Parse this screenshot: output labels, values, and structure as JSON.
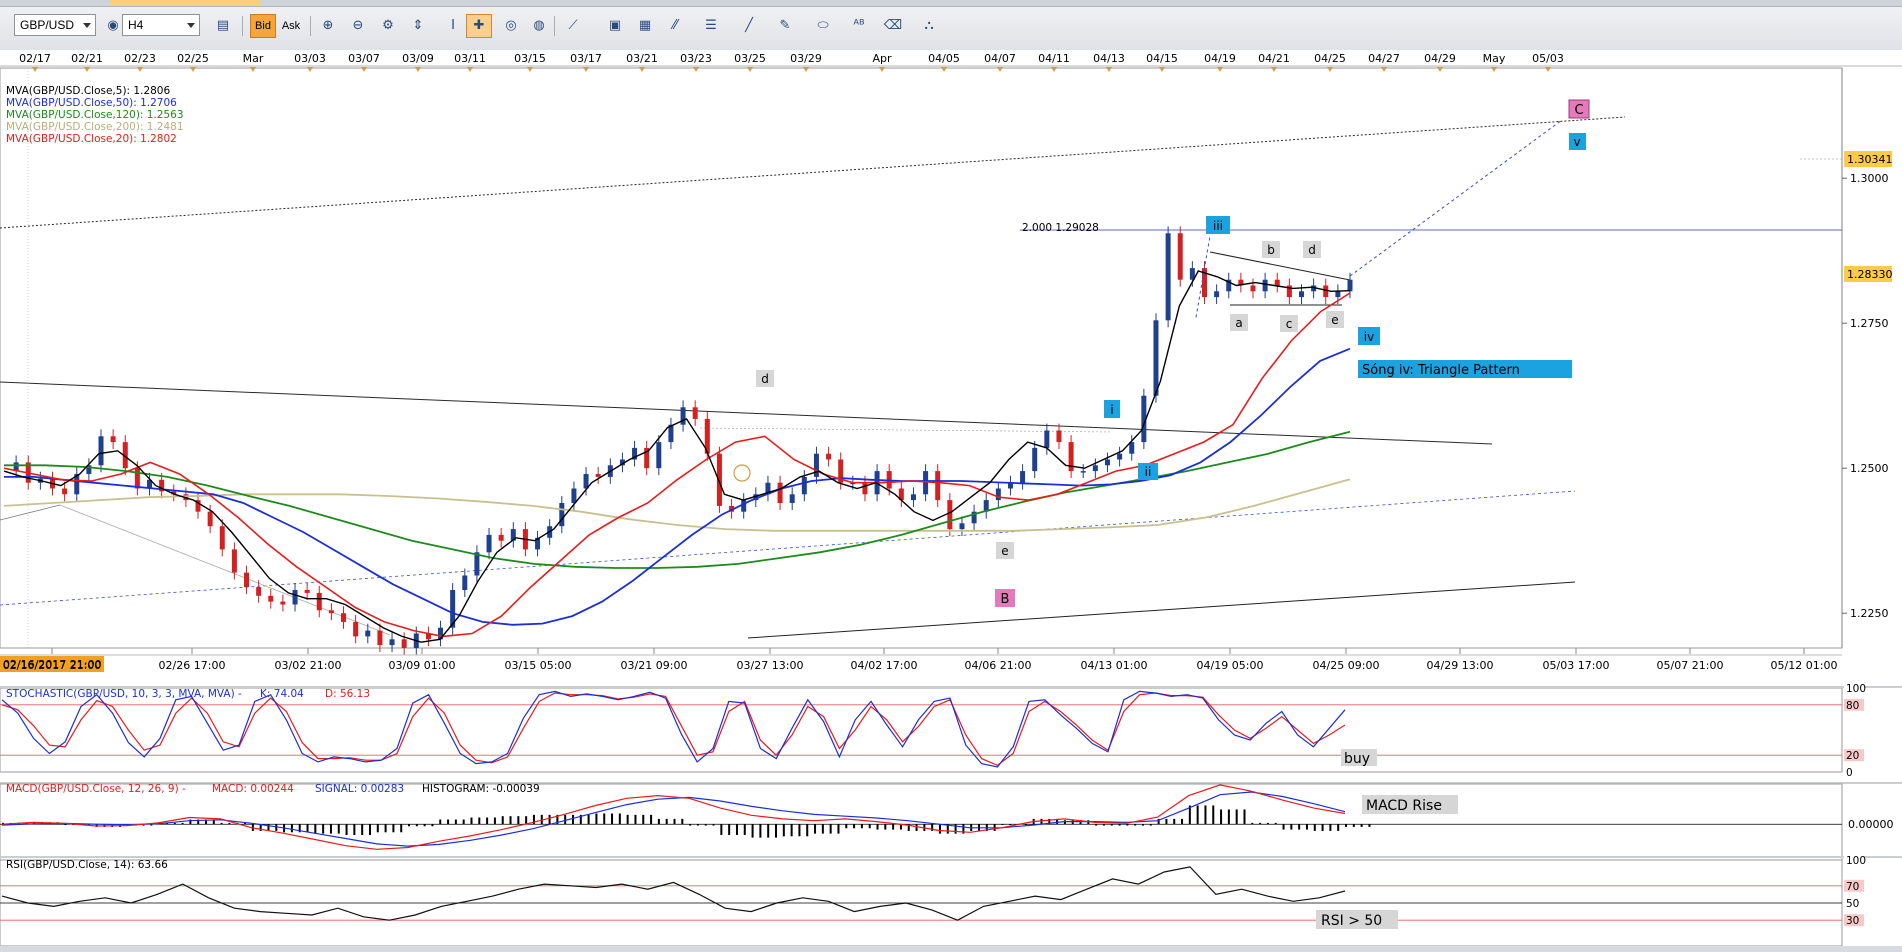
{
  "toolbar": {
    "symbol": "GBP/USD",
    "timeframe": "H4",
    "bid_label": "Bid",
    "ask_label": "Ask",
    "icons": [
      "chart-type-icon",
      "hide-icon",
      "indicator-icon",
      "zoom-in-icon",
      "zoom-out-icon",
      "scale-icon",
      "cursor-icon",
      "crosshair-icon",
      "magnet-icon",
      "globe-icon",
      "ruler-icon",
      "picture-icon",
      "template-icon",
      "lines-icon",
      "hline-icon",
      "trendline-icon",
      "ellipse-icon",
      "text-tool-icon",
      "eraser-icon",
      "objects-icon"
    ]
  },
  "colors": {
    "background": "#ffffff",
    "candle_up": "#1f3f8f",
    "candle_down": "#d42020",
    "ma5": "#000000",
    "ma50": "#1a2fd8",
    "ma120": "#1e8a1e",
    "ma200": "#c9c090",
    "ma20": "#e81c1c",
    "wave_label_blue": "#1aa3e0",
    "wave_label_pink": "#e47ab9",
    "wave_label_gray": "#d6d6d6",
    "price_tag": "#ffc94a",
    "date_tag": "#f0a022"
  },
  "chart_data": [
    {
      "type": "candlestick",
      "symbol": "GBP/USD",
      "timeframe": "H4",
      "top_axis_dates": [
        "02/17",
        "02/21",
        "02/23",
        "02/25",
        "Mar",
        "03/03",
        "03/07",
        "03/09",
        "03/11",
        "03/15",
        "03/17",
        "03/21",
        "03/23",
        "03/25",
        "03/29",
        "Apr",
        "04/05",
        "04/07",
        "04/11",
        "04/13",
        "04/15",
        "04/19",
        "04/21",
        "04/25",
        "04/27",
        "04/29",
        "May",
        "05/03"
      ],
      "x_tick_labels": [
        "02/16/2017 21:00",
        "02/26 17:00",
        "03/02 21:00",
        "03/09 01:00",
        "03/15 05:00",
        "03/21 09:00",
        "03/27 13:00",
        "04/02 17:00",
        "04/06 21:00",
        "04/13 01:00",
        "04/19 05:00",
        "04/25 09:00",
        "04/29 13:00",
        "05/03 17:00",
        "05/07 21:00",
        "05/12 01:00"
      ],
      "y_tick_labels": [
        "1.2250",
        "1.2500",
        "1.2750",
        "1.3000"
      ],
      "ylim": [
        1.219,
        1.319
      ],
      "price_tags": [
        "1.30341",
        "1.28330"
      ],
      "close_path": [
        1.2495,
        1.251,
        1.2475,
        1.2482,
        1.2465,
        1.2455,
        1.249,
        1.2505,
        1.2555,
        1.2545,
        1.25,
        1.2465,
        1.248,
        1.246,
        1.2455,
        1.2445,
        1.2425,
        1.24,
        1.236,
        1.232,
        1.2295,
        1.228,
        1.227,
        1.2265,
        1.229,
        1.2285,
        1.2255,
        1.225,
        1.2235,
        1.221,
        1.222,
        1.2195,
        1.2205,
        1.219,
        1.2215,
        1.2205,
        1.2225,
        1.229,
        1.2315,
        1.2355,
        1.2385,
        1.2375,
        1.2395,
        1.236,
        1.238,
        1.24,
        1.244,
        1.2465,
        1.249,
        1.2485,
        1.2505,
        1.2515,
        1.2535,
        1.25,
        1.2545,
        1.2575,
        1.2605,
        1.2585,
        1.2525,
        1.2435,
        1.2425,
        1.2445,
        1.2455,
        1.2475,
        1.244,
        1.2455,
        1.2485,
        1.2525,
        1.2515,
        1.2475,
        1.2475,
        1.2455,
        1.2495,
        1.2465,
        1.2445,
        1.2455,
        1.2495,
        1.2445,
        1.2395,
        1.2405,
        1.2425,
        1.2445,
        1.2465,
        1.2475,
        1.2495,
        1.2535,
        1.2565,
        1.2545,
        1.2495,
        1.2495,
        1.2505,
        1.2515,
        1.2525,
        1.2545,
        1.2625,
        1.2755,
        1.2905,
        1.2825,
        1.2845,
        1.2795,
        1.2805,
        1.2825,
        1.2815,
        1.2805,
        1.2825,
        1.2815,
        1.2795,
        1.2805,
        1.2815,
        1.2795,
        1.2805,
        1.2825
      ],
      "moving_averages": [
        {
          "name": "MVA(GBP/USD.Close,5): 1.2806",
          "values": [
            1.2495,
            1.2485,
            1.2478,
            1.247,
            1.249,
            1.2525,
            1.253,
            1.2505,
            1.247,
            1.2455,
            1.2445,
            1.2425,
            1.239,
            1.235,
            1.231,
            1.2285,
            1.2275,
            1.2275,
            1.2265,
            1.2245,
            1.2225,
            1.221,
            1.22,
            1.2205,
            1.2245,
            1.2305,
            1.2355,
            1.238,
            1.2375,
            1.2395,
            1.2435,
            1.2475,
            1.2495,
            1.2515,
            1.253,
            1.257,
            1.2585,
            1.2535,
            1.2455,
            1.2445,
            1.2455,
            1.2465,
            1.2485,
            1.2495,
            1.2475,
            1.2465,
            1.2475,
            1.2455,
            1.2425,
            1.241,
            1.2425,
            1.245,
            1.2475,
            1.2515,
            1.2545,
            1.2535,
            1.2505,
            1.25,
            1.2515,
            1.253,
            1.2565,
            1.265,
            1.278,
            1.284,
            1.283,
            1.2815,
            1.282,
            1.2815,
            1.281,
            1.2812,
            1.2805,
            1.2806
          ]
        },
        {
          "name": "MVA(GBP/USD.Close,50): 1.2706",
          "values": [
            1.2485,
            1.2485,
            1.248,
            1.2475,
            1.247,
            1.2465,
            1.246,
            1.2455,
            1.244,
            1.2415,
            1.239,
            1.236,
            1.233,
            1.23,
            1.2275,
            1.225,
            1.2235,
            1.223,
            1.2232,
            1.2245,
            1.227,
            1.2305,
            1.2345,
            1.2385,
            1.242,
            1.2445,
            1.2465,
            1.2478,
            1.2483,
            1.248,
            1.2478,
            1.2478,
            1.2478,
            1.2476,
            1.2474,
            1.2472,
            1.247,
            1.2472,
            1.2478,
            1.2488,
            1.251,
            1.2545,
            1.259,
            1.264,
            1.2685,
            1.2706
          ]
        },
        {
          "name": "MVA(GBP/USD.Close,120): 1.2563",
          "values": [
            1.2505,
            1.2505,
            1.2502,
            1.2495,
            1.2485,
            1.247,
            1.2452,
            1.2435,
            1.2415,
            1.2395,
            1.2375,
            1.236,
            1.2345,
            1.2335,
            1.233,
            1.2328,
            1.2328,
            1.233,
            1.2335,
            1.2345,
            1.2355,
            1.2368,
            1.2385,
            1.2405,
            1.2425,
            1.2442,
            1.2458,
            1.247,
            1.2482,
            1.2495,
            1.251,
            1.2525,
            1.2545,
            1.2563
          ]
        },
        {
          "name": "MVA(GBP/USD.Close,200): 1.2481",
          "values": [
            1.2435,
            1.244,
            1.2445,
            1.245,
            1.2452,
            1.2455,
            1.2455,
            1.2455,
            1.2452,
            1.2448,
            1.2442,
            1.2435,
            1.2425,
            1.2412,
            1.2402,
            1.2395,
            1.2392,
            1.2392,
            1.2392,
            1.2392,
            1.2392,
            1.2392,
            1.2395,
            1.2398,
            1.2402,
            1.2415,
            1.2435,
            1.2458,
            1.2481
          ]
        },
        {
          "name": "MVA(GBP/USD.Close,20): 1.2802",
          "values": [
            1.25,
            1.249,
            1.248,
            1.2478,
            1.249,
            1.251,
            1.249,
            1.2455,
            1.2415,
            1.237,
            1.233,
            1.2295,
            1.226,
            1.2235,
            1.222,
            1.221,
            1.2215,
            1.2245,
            1.2295,
            1.234,
            1.2385,
            1.2415,
            1.244,
            1.248,
            1.2515,
            1.2545,
            1.2555,
            1.2515,
            1.249,
            1.2475,
            1.2475,
            1.2478,
            1.2475,
            1.247,
            1.245,
            1.2445,
            1.2455,
            1.2475,
            1.2495,
            1.2505,
            1.2525,
            1.2545,
            1.2575,
            1.2655,
            1.272,
            1.277,
            1.2802
          ]
        }
      ],
      "fib_label": "2.000 1.29028",
      "fib_level": 1.29028,
      "wave_labels": [
        "C",
        "v",
        "iii",
        "b",
        "d",
        "a",
        "c",
        "e",
        "iv",
        "d",
        "i",
        "ii",
        "e",
        "B"
      ],
      "annotation": "Sóng iv: Triangle Pattern"
    },
    {
      "type": "line",
      "title": "STOCHASTIC(GBP/USD, 10, 3, 3, MVA, MVA) -  K: 74.04  D: 56.13",
      "title_prefix": "STOCHASTIC(GBP/USD, 10, 3, 3, MVA, MVA) -",
      "k_label": "K: 74.04",
      "d_label": "D: 56.13",
      "y_tick_labels": [
        "100",
        "80",
        "20",
        "0"
      ],
      "ylim": [
        0,
        100
      ],
      "levels": [
        80,
        20
      ],
      "annotation": "buy",
      "k_values": [
        86,
        70,
        40,
        22,
        36,
        78,
        92,
        70,
        35,
        18,
        40,
        86,
        90,
        58,
        26,
        32,
        84,
        92,
        62,
        22,
        12,
        18,
        16,
        12,
        14,
        28,
        82,
        92,
        58,
        22,
        10,
        12,
        22,
        64,
        92,
        96,
        90,
        93,
        90,
        86,
        90,
        95,
        88,
        45,
        12,
        28,
        84,
        82,
        28,
        16,
        52,
        86,
        60,
        18,
        62,
        84,
        56,
        30,
        62,
        84,
        88,
        32,
        10,
        6,
        30,
        84,
        86,
        68,
        52,
        34,
        24,
        86,
        96,
        94,
        90,
        92,
        88,
        62,
        44,
        38,
        58,
        72,
        44,
        30,
        52,
        74
      ],
      "d_values": [
        80,
        74,
        55,
        32,
        30,
        62,
        85,
        78,
        50,
        26,
        32,
        70,
        88,
        70,
        36,
        30,
        70,
        88,
        72,
        35,
        16,
        16,
        17,
        14,
        14,
        22,
        66,
        88,
        70,
        32,
        14,
        11,
        18,
        52,
        84,
        94,
        92,
        92,
        91,
        87,
        89,
        93,
        90,
        55,
        20,
        24,
        72,
        84,
        38,
        20,
        44,
        78,
        66,
        28,
        50,
        78,
        62,
        36,
        54,
        78,
        86,
        44,
        16,
        8,
        22,
        72,
        84,
        72,
        56,
        38,
        26,
        72,
        92,
        94,
        91,
        91,
        89,
        68,
        50,
        40,
        52,
        66,
        50,
        34,
        44,
        56
      ]
    },
    {
      "type": "bar",
      "title": "MACD(GBP/USD.Close, 12, 26, 9) -  MACD: 0.00244  SIGNAL: 0.00283  HISTOGRAM: -0.00039",
      "title_prefix": "MACD(GBP/USD.Close, 12, 26, 9) -",
      "macd_label": "MACD: 0.00244",
      "signal_label": "SIGNAL: 0.00283",
      "histogram_label": "HISTOGRAM: -0.00039",
      "y_tick_labels": [
        "0.00000"
      ],
      "ylim": [
        -0.008,
        0.009
      ],
      "annotation": "MACD Rise",
      "macd_values": [
        0.0,
        0.0004,
        0.0002,
        -0.0004,
        -0.0003,
        0.0003,
        0.0015,
        0.0012,
        -0.0008,
        -0.002,
        -0.0034,
        -0.0048,
        -0.0056,
        -0.0052,
        -0.0038,
        -0.0026,
        -0.0012,
        0.0004,
        0.0022,
        0.0042,
        0.0058,
        0.0064,
        0.0058,
        0.0036,
        0.002,
        0.0012,
        0.0008,
        0.0012,
        0.0006,
        -0.0002,
        -0.0014,
        -0.0018,
        -0.0008,
        0.0006,
        0.0012,
        0.0004,
        0.0002,
        0.0016,
        0.0064,
        0.0088,
        0.0074,
        0.0054,
        0.0036,
        0.0024
      ],
      "signal_values": [
        -0.0002,
        0.0001,
        0.0002,
        0.0,
        -0.0001,
        0.0001,
        0.0008,
        0.001,
        0.0002,
        -0.0008,
        -0.002,
        -0.0032,
        -0.0044,
        -0.0049,
        -0.0045,
        -0.0036,
        -0.0024,
        -0.001,
        0.0008,
        0.0026,
        0.0044,
        0.0056,
        0.006,
        0.0052,
        0.004,
        0.003,
        0.0022,
        0.0018,
        0.0014,
        0.0008,
        0.0,
        -0.0008,
        -0.0008,
        -0.0002,
        0.0006,
        0.0006,
        0.0004,
        0.0008,
        0.0036,
        0.0066,
        0.0072,
        0.0062,
        0.0046,
        0.0028
      ]
    },
    {
      "type": "line",
      "title": "RSI(GBP/USD.Close, 14): 63.66",
      "y_tick_labels": [
        "100",
        "70",
        "50",
        "30"
      ],
      "ylim": [
        0,
        100
      ],
      "levels": [
        70,
        50,
        30
      ],
      "annotation": "RSI > 50",
      "values": [
        58,
        50,
        46,
        52,
        56,
        50,
        60,
        72,
        56,
        44,
        40,
        38,
        36,
        44,
        34,
        30,
        36,
        46,
        52,
        58,
        66,
        72,
        70,
        68,
        72,
        66,
        74,
        60,
        44,
        40,
        50,
        56,
        52,
        40,
        46,
        50,
        42,
        30,
        46,
        52,
        58,
        54,
        66,
        78,
        72,
        86,
        92,
        60,
        66,
        58,
        52,
        56,
        64
      ]
    }
  ]
}
